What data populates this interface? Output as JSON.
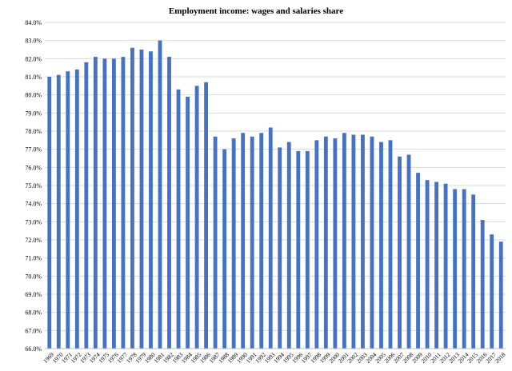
{
  "chart_data": {
    "type": "bar",
    "title": "Employment income: wages and salaries share",
    "xlabel": "",
    "ylabel": "",
    "ylim": [
      66.0,
      84.0
    ],
    "ytick_step": 1.0,
    "ytick_format": "percent_1dp",
    "grid": true,
    "legend": "none",
    "bar_color": "#4472c4",
    "categories": [
      "1969",
      "1970",
      "1971",
      "1972",
      "1973",
      "1974",
      "1975",
      "1976",
      "1977",
      "1978",
      "1979",
      "1980",
      "1981",
      "1982",
      "1983",
      "1984",
      "1985",
      "1986",
      "1987",
      "1988",
      "1989",
      "1990",
      "1991",
      "1992",
      "1993",
      "1994",
      "1995",
      "1996",
      "1997",
      "1998",
      "1999",
      "2000",
      "2001",
      "2002",
      "2003",
      "2004",
      "2005",
      "2006",
      "2007",
      "2008",
      "2009",
      "2010",
      "2011",
      "2012",
      "2013",
      "2014",
      "2015",
      "2016",
      "2017",
      "2018"
    ],
    "values": [
      81.0,
      81.1,
      81.3,
      81.4,
      81.8,
      82.1,
      82.0,
      82.0,
      82.1,
      82.6,
      82.5,
      82.4,
      83.0,
      82.1,
      80.3,
      79.9,
      80.5,
      80.7,
      77.7,
      77.0,
      77.6,
      77.9,
      77.7,
      77.9,
      78.2,
      77.1,
      77.4,
      76.9,
      76.9,
      77.5,
      77.7,
      77.6,
      77.9,
      77.8,
      77.8,
      77.7,
      77.4,
      77.5,
      76.6,
      76.7,
      75.7,
      75.3,
      75.2,
      75.1,
      74.8,
      74.8,
      74.5,
      73.1,
      72.3,
      71.9
    ]
  }
}
